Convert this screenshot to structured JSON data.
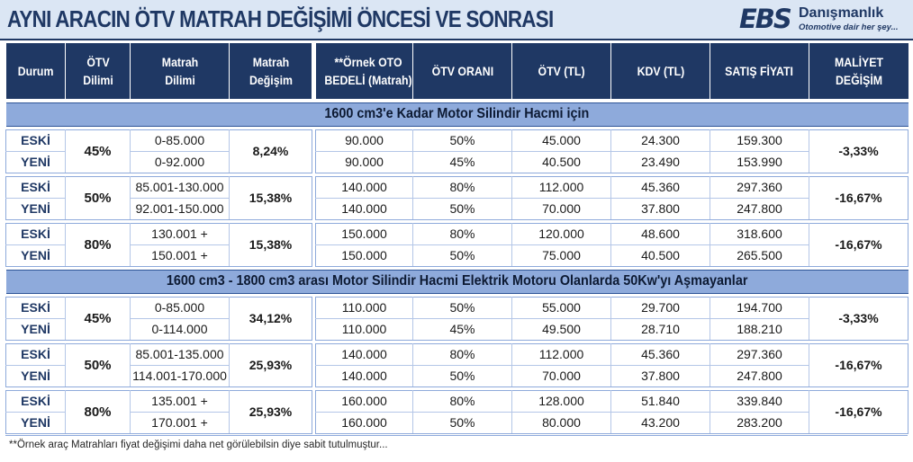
{
  "title": "AYNI ARACIN ÖTV MATRAH DEĞİŞİMİ ÖNCESİ VE SONRASI",
  "logo": {
    "mark": "EBS",
    "name": "Danışmanlık",
    "slogan": "Otomotive dair her şey..."
  },
  "headers": {
    "durum": "Durum",
    "otv_dilimi": "ÖTV Dilimi",
    "matrah_dilimi": "Matrah Dilimi",
    "matrah_degisim": "Matrah Değişim",
    "ornek_bedel": "**Örnek OTO BEDELİ (Matrah)",
    "otv_orani": "ÖTV ORANI",
    "otv_tl": "ÖTV (TL)",
    "kdv_tl": "KDV (TL)",
    "satis_fiyati": "SATIŞ FİYATI",
    "maliyet_degisim": "MALİYET DEĞİŞİM"
  },
  "sections": [
    {
      "title": "1600 cm3'e Kadar Motor Silindir Hacmi için",
      "groups": [
        {
          "otv_dilimi": "45%",
          "matrah_degisim": "8,24%",
          "maliyet_degisim": "-3,33%",
          "rows": [
            {
              "durum": "ESKİ",
              "matrah": "0-85.000",
              "bedel": "90.000",
              "oran": "50%",
              "otv": "45.000",
              "kdv": "24.300",
              "satis": "159.300"
            },
            {
              "durum": "YENİ",
              "matrah": "0-92.000",
              "bedel": "90.000",
              "oran": "45%",
              "otv": "40.500",
              "kdv": "23.490",
              "satis": "153.990"
            }
          ]
        },
        {
          "otv_dilimi": "50%",
          "matrah_degisim": "15,38%",
          "maliyet_degisim": "-16,67%",
          "rows": [
            {
              "durum": "ESKİ",
              "matrah": "85.001-130.000",
              "bedel": "140.000",
              "oran": "80%",
              "otv": "112.000",
              "kdv": "45.360",
              "satis": "297.360"
            },
            {
              "durum": "YENİ",
              "matrah": "92.001-150.000",
              "bedel": "140.000",
              "oran": "50%",
              "otv": "70.000",
              "kdv": "37.800",
              "satis": "247.800"
            }
          ]
        },
        {
          "otv_dilimi": "80%",
          "matrah_degisim": "15,38%",
          "maliyet_degisim": "-16,67%",
          "rows": [
            {
              "durum": "ESKİ",
              "matrah": "130.001 +",
              "bedel": "150.000",
              "oran": "80%",
              "otv": "120.000",
              "kdv": "48.600",
              "satis": "318.600"
            },
            {
              "durum": "YENİ",
              "matrah": "150.001 +",
              "bedel": "150.000",
              "oran": "50%",
              "otv": "75.000",
              "kdv": "40.500",
              "satis": "265.500"
            }
          ]
        }
      ]
    },
    {
      "title": "1600 cm3 - 1800 cm3 arası Motor Silindir Hacmi Elektrik Motoru Olanlarda 50Kw'yı Aşmayanlar",
      "groups": [
        {
          "otv_dilimi": "45%",
          "matrah_degisim": "34,12%",
          "maliyet_degisim": "-3,33%",
          "rows": [
            {
              "durum": "ESKİ",
              "matrah": "0-85.000",
              "bedel": "110.000",
              "oran": "50%",
              "otv": "55.000",
              "kdv": "29.700",
              "satis": "194.700"
            },
            {
              "durum": "YENİ",
              "matrah": "0-114.000",
              "bedel": "110.000",
              "oran": "45%",
              "otv": "49.500",
              "kdv": "28.710",
              "satis": "188.210"
            }
          ]
        },
        {
          "otv_dilimi": "50%",
          "matrah_degisim": "25,93%",
          "maliyet_degisim": "-16,67%",
          "rows": [
            {
              "durum": "ESKİ",
              "matrah": "85.001-135.000",
              "bedel": "140.000",
              "oran": "80%",
              "otv": "112.000",
              "kdv": "45.360",
              "satis": "297.360"
            },
            {
              "durum": "YENİ",
              "matrah": "114.001-170.000",
              "bedel": "140.000",
              "oran": "50%",
              "otv": "70.000",
              "kdv": "37.800",
              "satis": "247.800"
            }
          ]
        },
        {
          "otv_dilimi": "80%",
          "matrah_degisim": "25,93%",
          "maliyet_degisim": "-16,67%",
          "rows": [
            {
              "durum": "ESKİ",
              "matrah": "135.001 +",
              "bedel": "160.000",
              "oran": "80%",
              "otv": "128.000",
              "kdv": "51.840",
              "satis": "339.840"
            },
            {
              "durum": "YENİ",
              "matrah": "170.001 +",
              "bedel": "160.000",
              "oran": "50%",
              "otv": "80.000",
              "kdv": "43.200",
              "satis": "283.200"
            }
          ]
        }
      ]
    }
  ],
  "footnote": "**Örnek araç Matrahları fiyat değişimi daha net görülebilsin diye sabit tutulmuştur..."
}
